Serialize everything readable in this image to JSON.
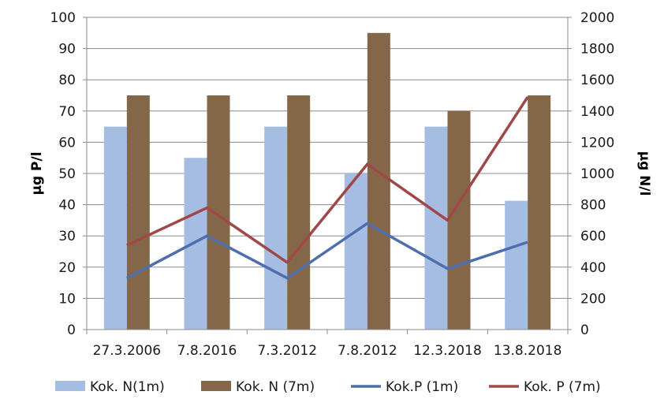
{
  "chart_data": {
    "type": "bar",
    "categories": [
      "27.3.2006",
      "7.8.2016",
      "7.3.2012",
      "7.8.2012",
      "12.3.2018",
      "13.8.2018"
    ],
    "series": [
      {
        "name": "Kok. N(1m)",
        "kind": "bar",
        "axis": "right",
        "color": "#a6bde3",
        "values": [
          1300,
          1100,
          1300,
          1000,
          1300,
          825
        ]
      },
      {
        "name": "Kok. N (7m)",
        "kind": "bar",
        "axis": "right",
        "color": "#846748",
        "values": [
          1500,
          1500,
          1500,
          1900,
          1400,
          1500
        ]
      },
      {
        "name": "Kok.P (1m)",
        "kind": "line",
        "axis": "left",
        "color": "#4f6eae",
        "values": [
          16.5,
          30,
          16.5,
          34,
          19.5,
          28
        ]
      },
      {
        "name": "Kok. P (7m)",
        "kind": "line",
        "axis": "left",
        "color": "#a04848",
        "values": [
          27,
          39,
          21.5,
          53,
          35,
          74.5
        ]
      }
    ],
    "y_left": {
      "label": "µg P/l",
      "min": 0,
      "max": 100,
      "step": 10,
      "ticks": [
        "0",
        "10",
        "20",
        "30",
        "40",
        "50",
        "60",
        "70",
        "80",
        "90",
        "100"
      ]
    },
    "y_right": {
      "label": "µg N/l",
      "min": 0,
      "max": 2000,
      "step": 200,
      "ticks": [
        "0",
        "200",
        "400",
        "600",
        "800",
        "1000",
        "1200",
        "1400",
        "1600",
        "1800",
        "2000"
      ]
    },
    "grid": true,
    "legend": "bottom"
  }
}
